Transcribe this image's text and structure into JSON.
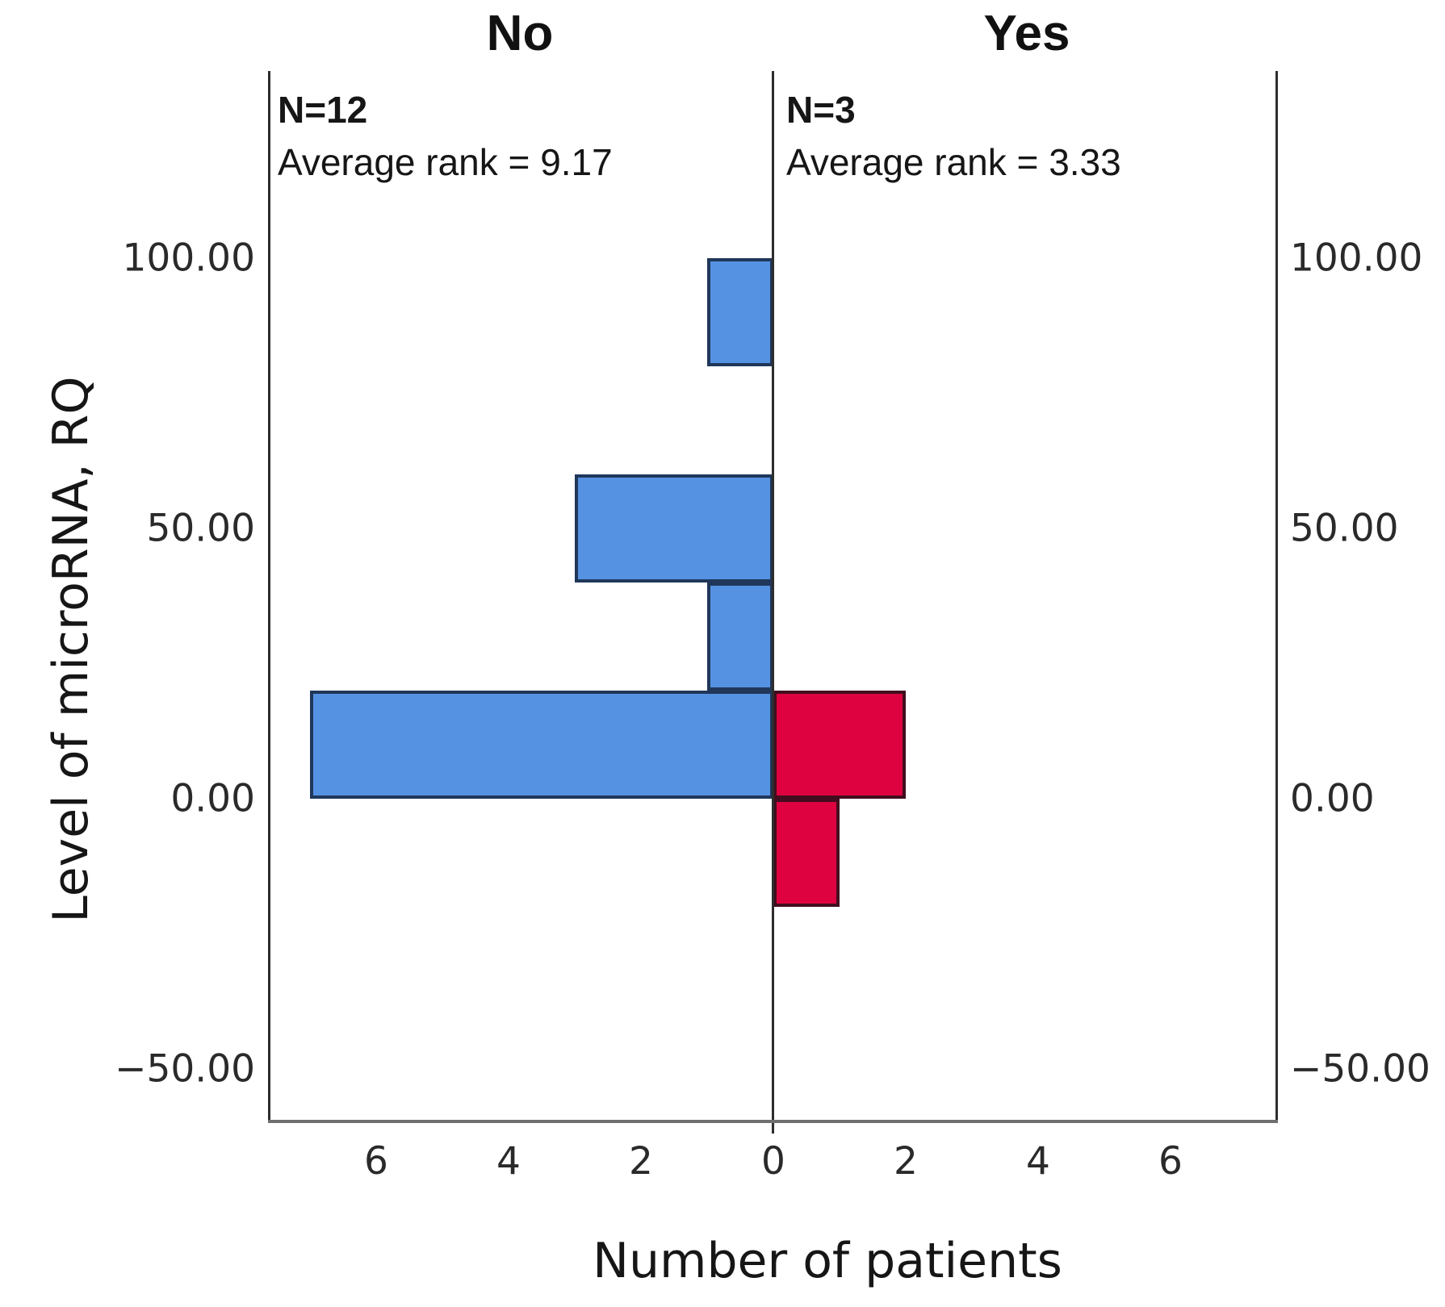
{
  "figure": {
    "background": "#ffffff",
    "axis_line_color": "#2d2d2d",
    "baseline_color": "#6f6f6f"
  },
  "header": {
    "left": "No",
    "right": "Yes"
  },
  "annotations": {
    "left": {
      "n": "N=12",
      "rank": "Average rank = 9.17"
    },
    "right": {
      "n": "N=3",
      "rank": "Average rank = 3.33"
    }
  },
  "axes": {
    "ylabel": "Level of microRNA, RQ",
    "xlabel": "Number of patients",
    "y_tick_labels": [
      "100.00",
      "50.00",
      "0.00",
      "−50.00"
    ],
    "y_tick_values": [
      100,
      50,
      0,
      -50
    ],
    "x_tick_labels": [
      "6",
      "4",
      "2",
      "0",
      "2",
      "4",
      "6"
    ],
    "x_tick_values": [
      -6,
      -4,
      -2,
      0,
      2,
      4,
      6
    ]
  },
  "chart_data": {
    "type": "bar",
    "subtype": "back-to-back horizontal histogram (population pyramid)",
    "orientation": "horizontal, mirrored around center axis",
    "xlabel": "Number of patients",
    "ylabel": "Level of microRNA, RQ",
    "bin_width": 20,
    "x_range_per_side": [
      0,
      7.6
    ],
    "y_range": [
      -55,
      135
    ],
    "y_ticks": [
      100,
      50,
      0,
      -50
    ],
    "x_ticks_per_side": [
      0,
      2,
      4,
      6
    ],
    "grid": false,
    "legend_position": "none",
    "series": [
      {
        "name": "No",
        "side": "left",
        "n": 12,
        "average_rank": 9.17,
        "fill": "#5592e2",
        "border": "#20375a",
        "bars": [
          {
            "bin_low": 80,
            "bin_high": 100,
            "count": 1
          },
          {
            "bin_low": 40,
            "bin_high": 60,
            "count": 3
          },
          {
            "bin_low": 20,
            "bin_high": 40,
            "count": 1
          },
          {
            "bin_low": 0,
            "bin_high": 20,
            "count": 7
          }
        ]
      },
      {
        "name": "Yes",
        "side": "right",
        "n": 3,
        "average_rank": 3.33,
        "fill": "#de0340",
        "border": "#420d1e",
        "bars": [
          {
            "bin_low": 0,
            "bin_high": 20,
            "count": 2
          },
          {
            "bin_low": -20,
            "bin_high": 0,
            "count": 1
          }
        ]
      }
    ]
  }
}
